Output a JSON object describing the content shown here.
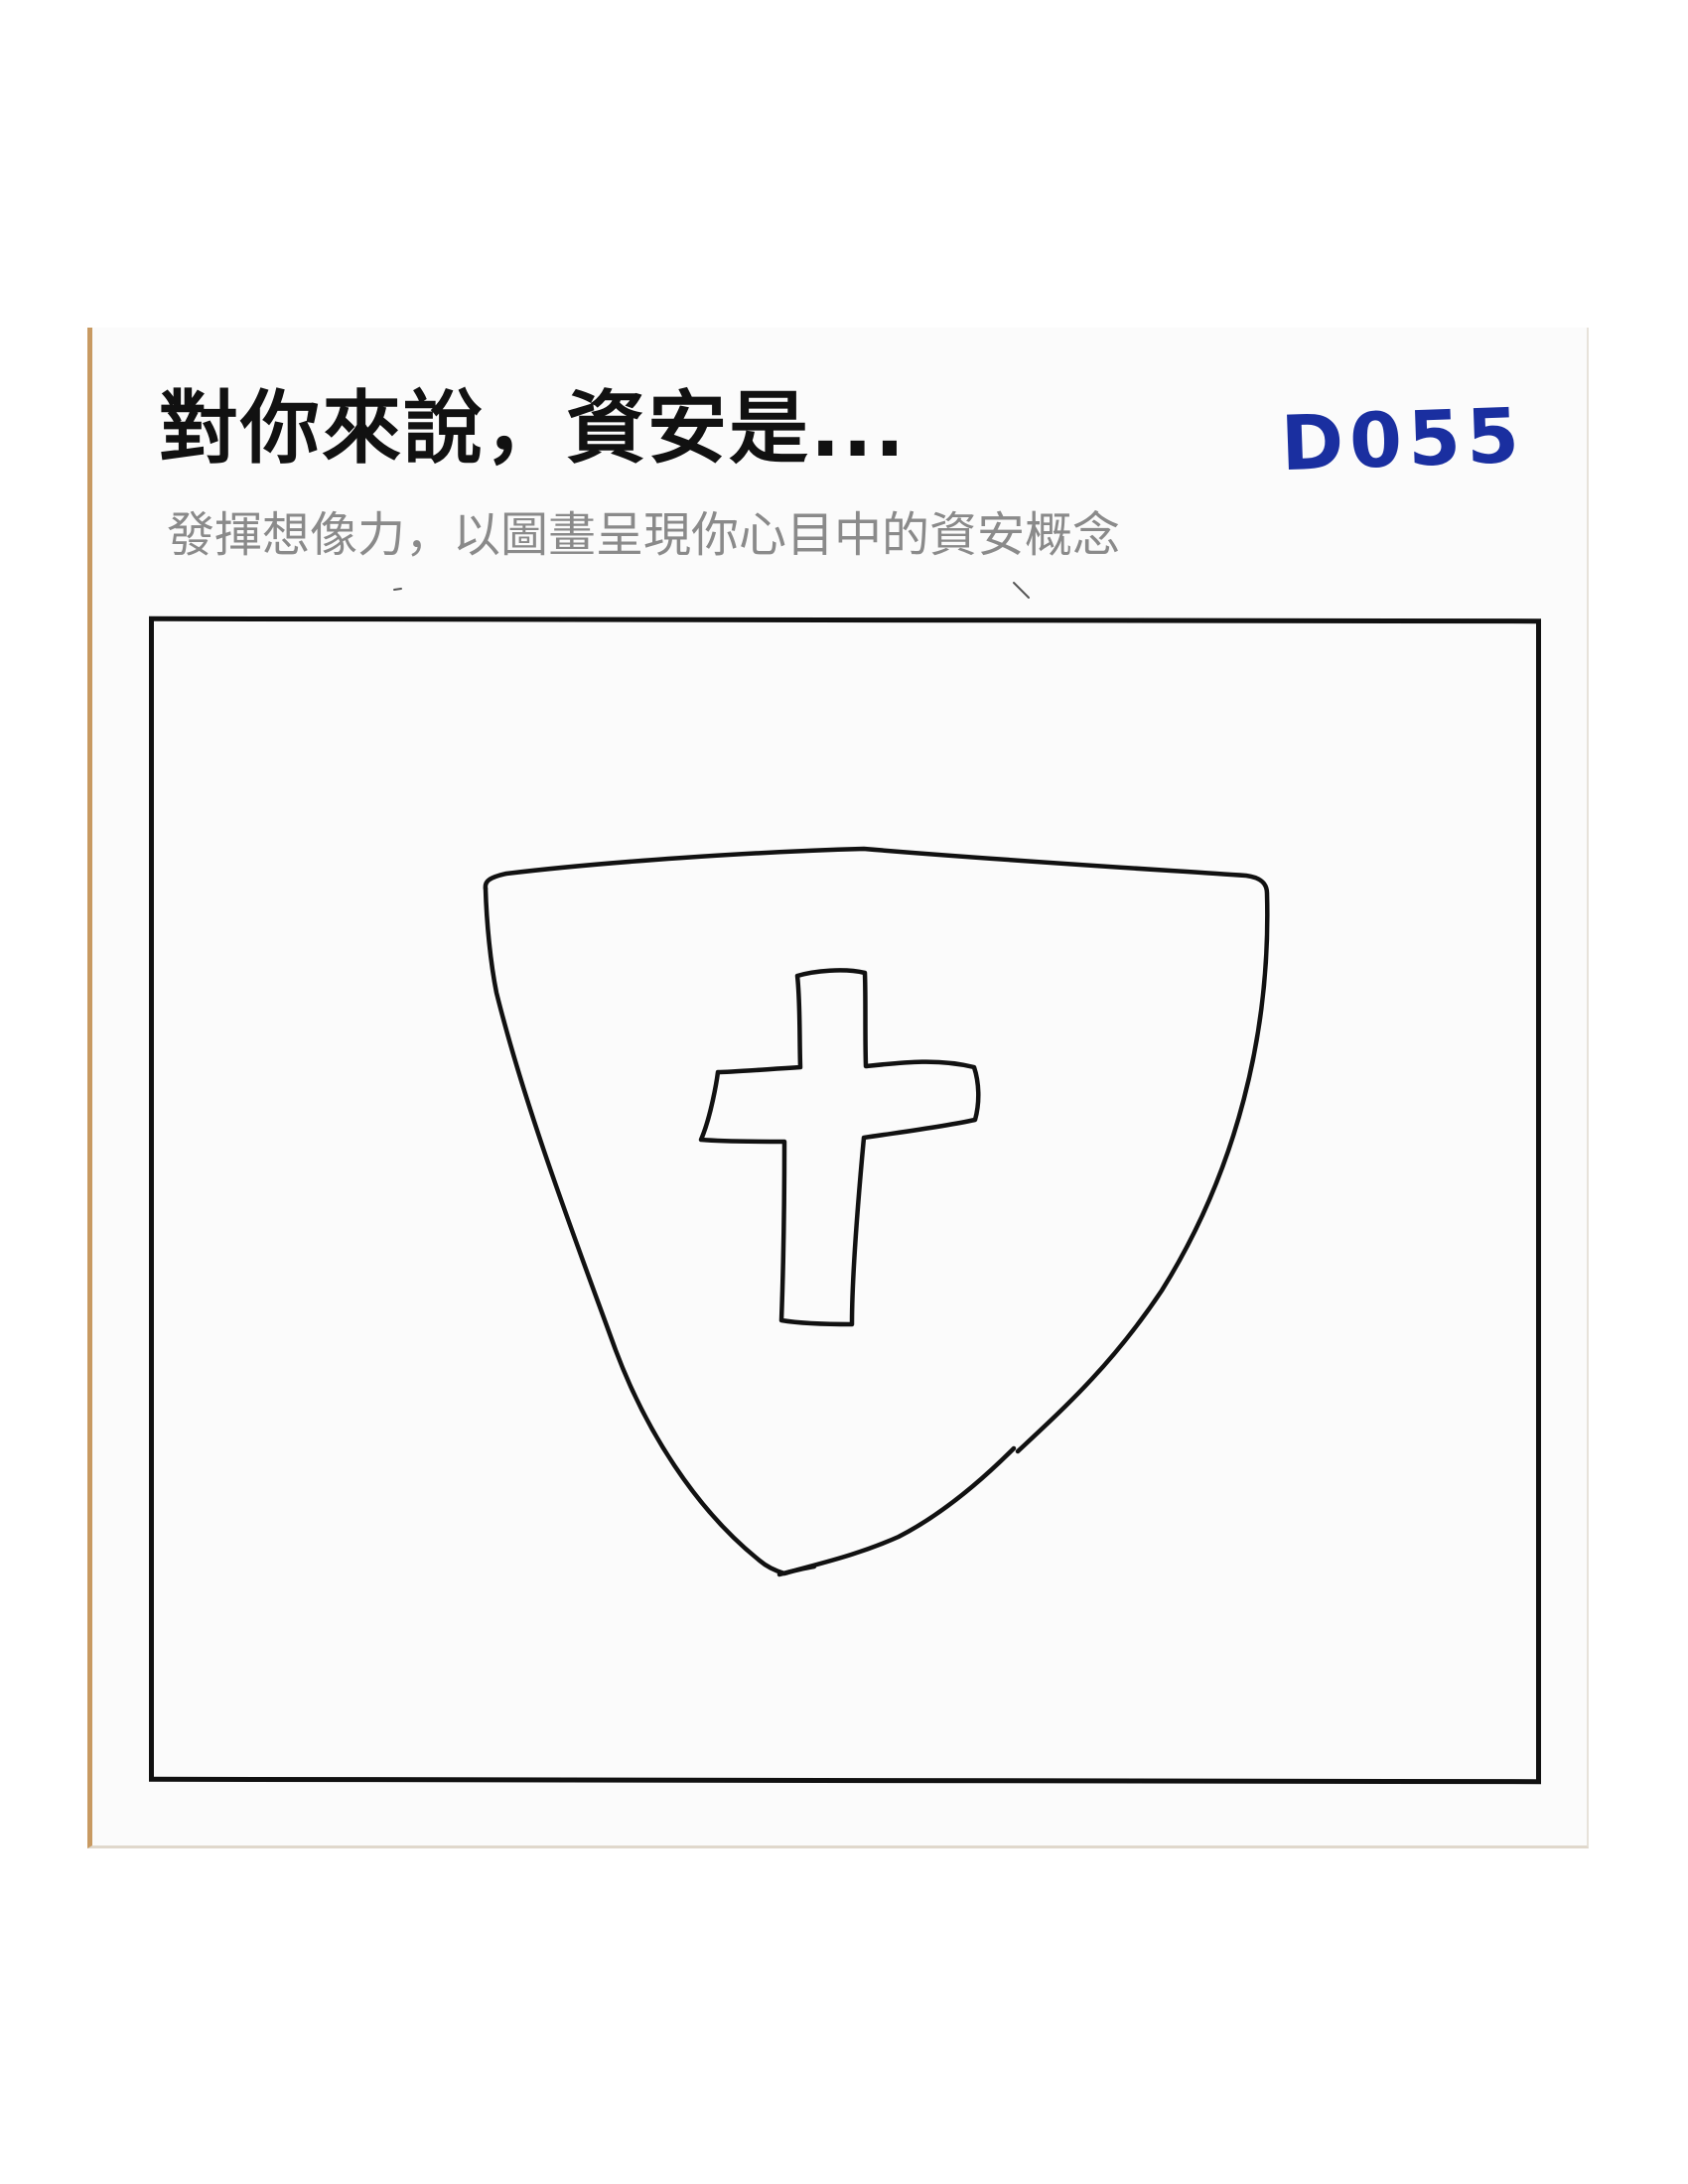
{
  "header": {
    "title": "對你來說，資安是...",
    "subtitle": "發揮想像力，以圖畫呈現你心目中的資安概念"
  },
  "card": {
    "code": "D055"
  },
  "drawing": {
    "subject": "shield-with-cross"
  },
  "colors": {
    "card_edge": "#c89a62",
    "ink": "#111111",
    "subtitle": "#8a8a8a",
    "pen_blue": "#1a2fa0"
  }
}
